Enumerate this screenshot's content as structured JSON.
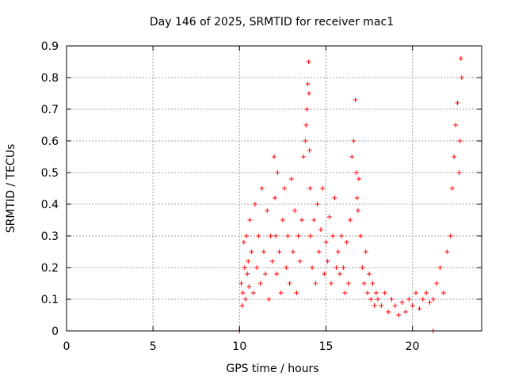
{
  "chart_data": {
    "type": "scatter",
    "title": "Day 146 of 2025, SRMTID for receiver mac1",
    "xlabel": "GPS time / hours",
    "ylabel": "SRMTID / TECUs",
    "xlim": [
      0,
      24
    ],
    "ylim": [
      0,
      0.9
    ],
    "xticks": [
      0,
      5,
      10,
      15,
      20
    ],
    "yticks": [
      0,
      0.1,
      0.2,
      0.3,
      0.4,
      0.5,
      0.6,
      0.7,
      0.8,
      0.9
    ],
    "grid": true,
    "marker": "+",
    "series_color": "#ff0000",
    "series": [
      {
        "name": "SRMTID",
        "x": [
          10.0,
          10.1,
          10.15,
          10.2,
          10.25,
          10.3,
          10.35,
          10.4,
          10.45,
          10.5,
          10.55,
          10.6,
          10.7,
          10.8,
          10.9,
          11.0,
          11.1,
          11.2,
          11.3,
          11.4,
          11.5,
          11.6,
          11.7,
          11.8,
          11.9,
          12.0,
          12.05,
          12.1,
          12.15,
          12.2,
          12.3,
          12.4,
          12.5,
          12.6,
          12.7,
          12.8,
          12.9,
          13.0,
          13.1,
          13.2,
          13.3,
          13.4,
          13.5,
          13.6,
          13.7,
          13.8,
          13.85,
          13.9,
          13.95,
          14.0,
          14.02,
          14.05,
          14.08,
          14.1,
          14.2,
          14.3,
          14.4,
          14.5,
          14.6,
          14.7,
          14.8,
          14.9,
          15.0,
          15.1,
          15.2,
          15.3,
          15.4,
          15.5,
          15.6,
          15.7,
          15.8,
          15.9,
          16.0,
          16.1,
          16.2,
          16.3,
          16.4,
          16.5,
          16.6,
          16.7,
          16.75,
          16.8,
          16.85,
          16.9,
          17.0,
          17.1,
          17.2,
          17.3,
          17.4,
          17.5,
          17.6,
          17.7,
          17.8,
          17.9,
          18.0,
          18.2,
          18.4,
          18.6,
          18.8,
          19.0,
          19.2,
          19.4,
          19.6,
          19.8,
          20.0,
          20.2,
          20.4,
          20.6,
          20.8,
          21.0,
          21.2,
          21.2,
          21.4,
          21.6,
          21.8,
          22.0,
          22.2,
          22.3,
          22.4,
          22.5,
          22.6,
          22.7,
          22.75,
          22.8,
          22.85
        ],
        "y": [
          0.0,
          0.15,
          0.08,
          0.12,
          0.28,
          0.2,
          0.1,
          0.3,
          0.18,
          0.22,
          0.14,
          0.35,
          0.25,
          0.12,
          0.4,
          0.2,
          0.3,
          0.15,
          0.45,
          0.25,
          0.18,
          0.38,
          0.1,
          0.3,
          0.22,
          0.55,
          0.42,
          0.3,
          0.18,
          0.5,
          0.25,
          0.12,
          0.35,
          0.45,
          0.2,
          0.3,
          0.15,
          0.48,
          0.25,
          0.38,
          0.12,
          0.3,
          0.22,
          0.35,
          0.55,
          0.6,
          0.65,
          0.7,
          0.78,
          0.85,
          0.75,
          0.57,
          0.45,
          0.3,
          0.2,
          0.35,
          0.15,
          0.4,
          0.25,
          0.32,
          0.45,
          0.18,
          0.28,
          0.22,
          0.36,
          0.15,
          0.3,
          0.42,
          0.2,
          0.25,
          0.18,
          0.3,
          0.2,
          0.12,
          0.28,
          0.15,
          0.35,
          0.55,
          0.6,
          0.73,
          0.5,
          0.42,
          0.38,
          0.48,
          0.3,
          0.2,
          0.15,
          0.25,
          0.12,
          0.18,
          0.1,
          0.15,
          0.08,
          0.12,
          0.1,
          0.08,
          0.12,
          0.06,
          0.1,
          0.08,
          0.05,
          0.09,
          0.06,
          0.1,
          0.08,
          0.12,
          0.07,
          0.1,
          0.12,
          0.09,
          0.0,
          0.1,
          0.15,
          0.2,
          0.12,
          0.25,
          0.3,
          0.45,
          0.55,
          0.65,
          0.72,
          0.5,
          0.6,
          0.86,
          0.8
        ]
      }
    ]
  }
}
